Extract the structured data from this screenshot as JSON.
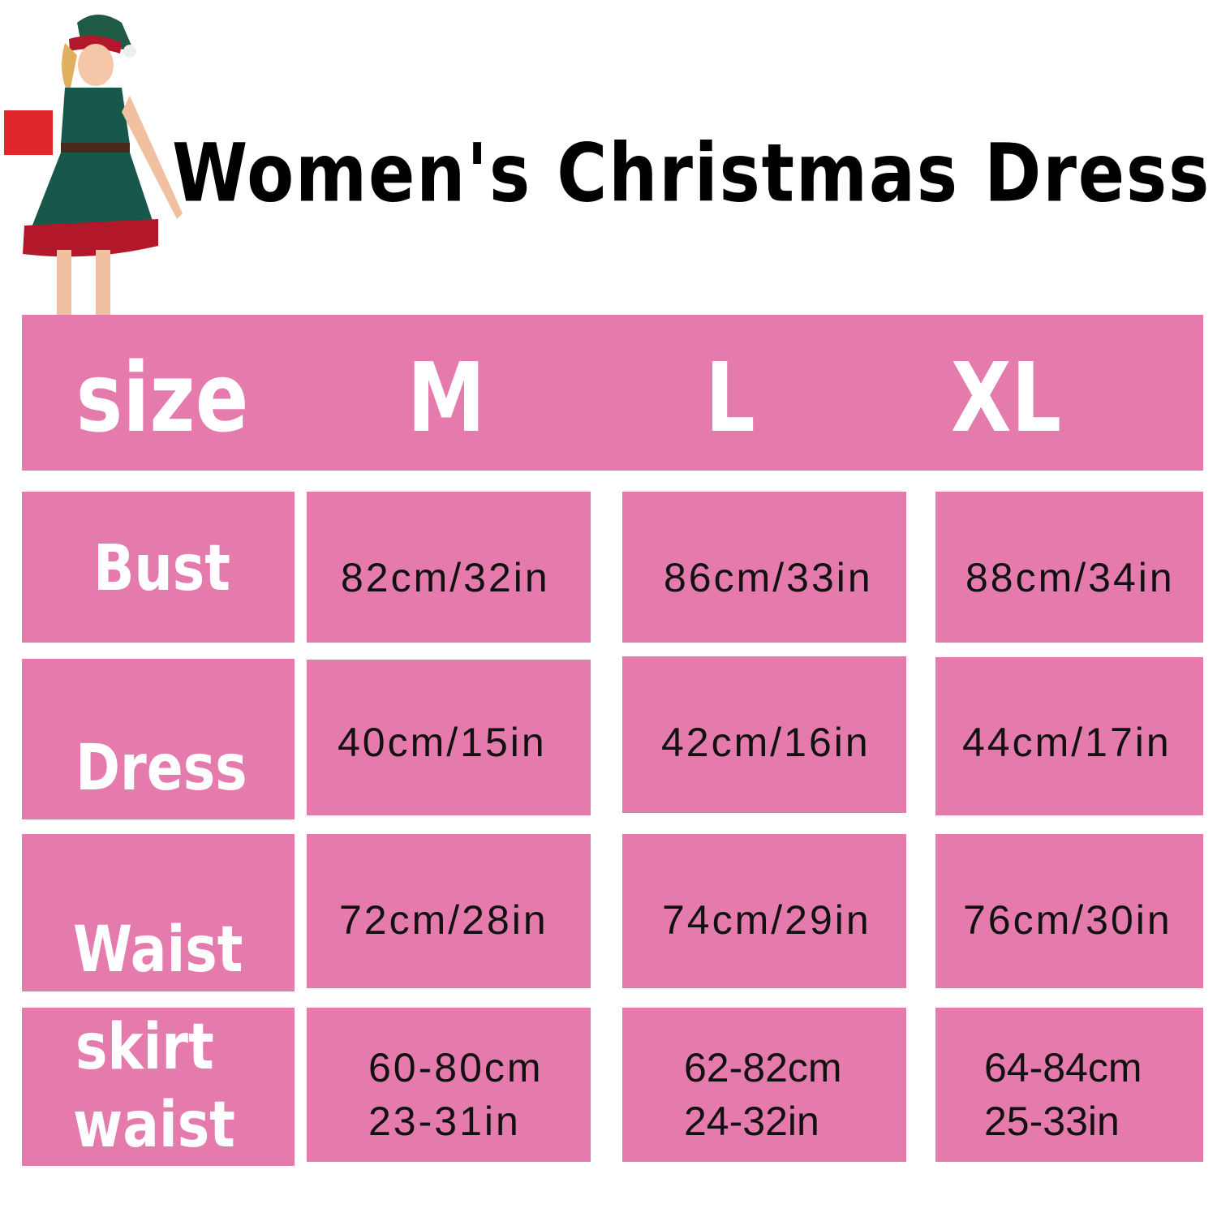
{
  "title": "Women's Christmas Dress",
  "colors": {
    "cell_pink": "#e57aad",
    "label_text": "#ffffff",
    "value_text": "#111111"
  },
  "header": {
    "label": "size",
    "sizes": [
      "M",
      "L",
      "XL"
    ]
  },
  "rows": [
    {
      "label": "Bust",
      "values": [
        "82cm/32in",
        "86cm/33in",
        "88cm/34in"
      ]
    },
    {
      "label": "Dress",
      "values": [
        "40cm/15in",
        "42cm/16in",
        "44cm/17in"
      ]
    },
    {
      "label": "Waist",
      "values": [
        "72cm/28in",
        "74cm/29in",
        "76cm/30in"
      ]
    },
    {
      "label_line1": "skirt",
      "label_line2": "waist",
      "values": [
        {
          "cm": "60-80cm",
          "in": "23-31in"
        },
        {
          "cm": "62-82cm",
          "in": "24-32in"
        },
        {
          "cm": "64-84cm",
          "in": "25-33in"
        }
      ]
    }
  ]
}
